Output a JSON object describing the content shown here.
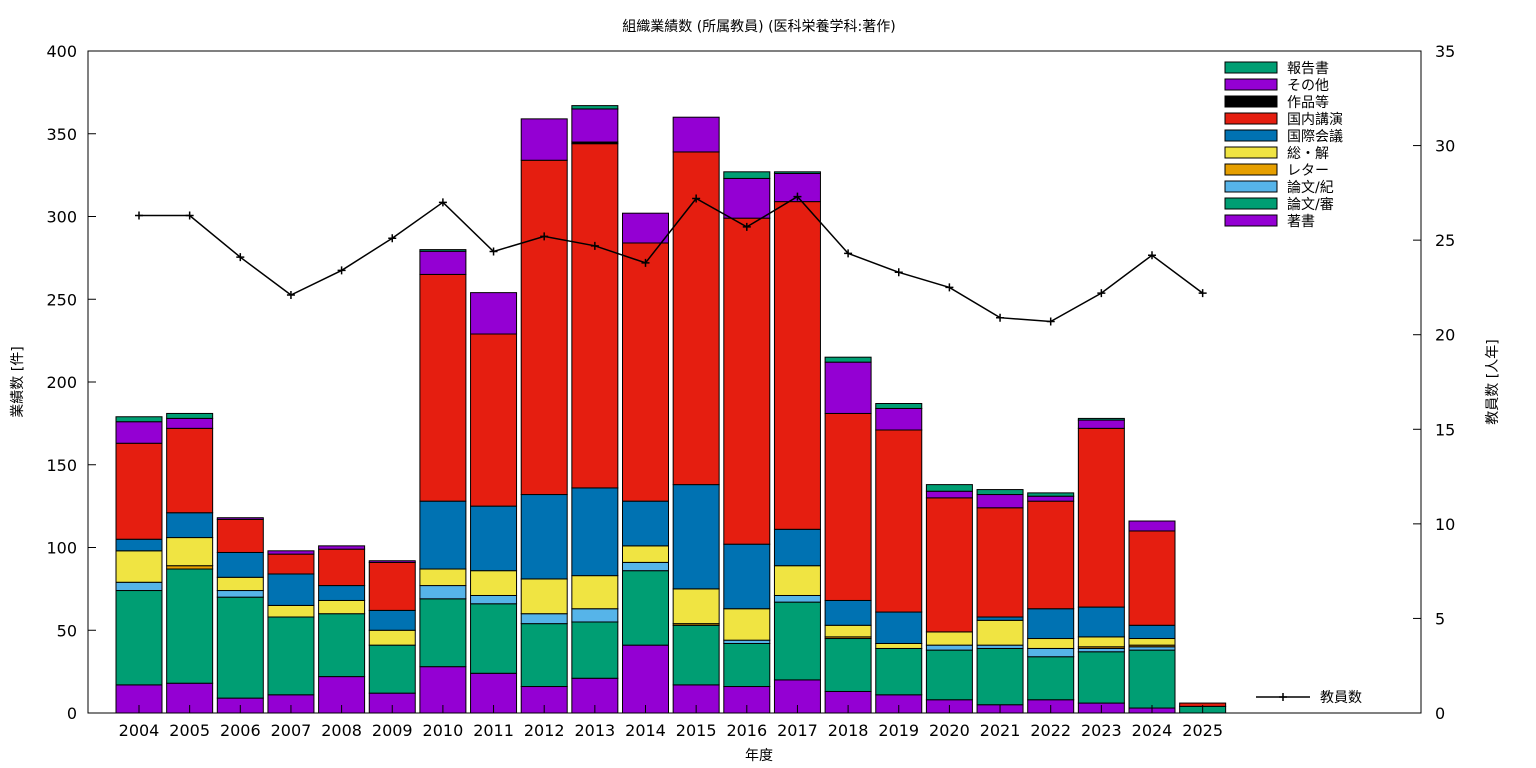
{
  "chart_data": {
    "type": "bar",
    "stacked": true,
    "title": "組織業績数 (所属教員) (医科栄養学科:著作)",
    "xlabel": "年度",
    "ylabel_left": "業績数 [件]",
    "ylabel_right": "教員数 [人年]",
    "ylim_left": [
      0,
      400
    ],
    "ylim_right": [
      0,
      35
    ],
    "yticks_left": [
      "0",
      "50",
      "100",
      "150",
      "200",
      "250",
      "300",
      "350",
      "400"
    ],
    "yticks_right": [
      "0",
      "5",
      "10",
      "15",
      "20",
      "25",
      "30",
      "35"
    ],
    "grid": false,
    "legend_position": "top-right",
    "categories": [
      "2004",
      "2005",
      "2006",
      "2007",
      "2008",
      "2009",
      "2010",
      "2011",
      "2012",
      "2013",
      "2014",
      "2015",
      "2016",
      "2017",
      "2018",
      "2019",
      "2020",
      "2021",
      "2022",
      "2023",
      "2024",
      "2025"
    ],
    "series": [
      {
        "name": "著書",
        "color": "#9400d3",
        "values": [
          17,
          18,
          9,
          11,
          22,
          12,
          28,
          24,
          16,
          21,
          41,
          17,
          16,
          20,
          13,
          11,
          8,
          5,
          8,
          6,
          3,
          0
        ]
      },
      {
        "name": "論文/審",
        "color": "#009e73",
        "values": [
          57,
          69,
          61,
          47,
          38,
          29,
          41,
          42,
          38,
          34,
          45,
          36,
          26,
          47,
          32,
          28,
          30,
          34,
          26,
          31,
          35,
          4
        ]
      },
      {
        "name": "論文/紀",
        "color": "#56b4e9",
        "values": [
          5,
          0,
          4,
          0,
          0,
          0,
          8,
          5,
          6,
          8,
          5,
          0,
          2,
          4,
          0,
          0,
          3,
          2,
          5,
          2,
          2,
          0
        ]
      },
      {
        "name": "レター",
        "color": "#e69f00",
        "values": [
          0,
          2,
          0,
          0,
          0,
          0,
          0,
          0,
          0,
          0,
          0,
          1,
          0,
          0,
          1,
          0,
          0,
          0,
          0,
          1,
          1,
          0
        ]
      },
      {
        "name": "総・解",
        "color": "#f0e442",
        "values": [
          19,
          17,
          8,
          7,
          8,
          9,
          10,
          15,
          21,
          20,
          10,
          21,
          19,
          18,
          7,
          3,
          8,
          15,
          6,
          6,
          4,
          0
        ]
      },
      {
        "name": "国際会議",
        "color": "#0072b2",
        "values": [
          7,
          15,
          15,
          19,
          9,
          12,
          41,
          39,
          51,
          53,
          27,
          63,
          39,
          22,
          15,
          19,
          0,
          2,
          18,
          18,
          8,
          0
        ]
      },
      {
        "name": "国内講演",
        "color": "#e51e10",
        "values": [
          58,
          51,
          20,
          12,
          22,
          29,
          137,
          104,
          202,
          208,
          156,
          201,
          197,
          198,
          113,
          110,
          81,
          66,
          65,
          108,
          57,
          2
        ]
      },
      {
        "name": "作品等",
        "color": "#000000",
        "values": [
          0,
          0,
          0,
          0,
          0,
          0,
          0,
          0,
          0,
          1,
          0,
          0,
          0,
          0,
          0,
          0,
          0,
          0,
          0,
          0,
          0,
          0
        ]
      },
      {
        "name": "その他",
        "color": "#9400d3",
        "values": [
          13,
          6,
          1,
          2,
          2,
          1,
          14,
          25,
          25,
          20,
          18,
          21,
          24,
          17,
          31,
          13,
          4,
          8,
          3,
          5,
          6,
          0
        ]
      },
      {
        "name": "報告書",
        "color": "#009e73",
        "values": [
          3,
          3,
          0,
          0,
          0,
          0,
          1,
          0,
          0,
          2,
          0,
          0,
          4,
          1,
          3,
          3,
          4,
          3,
          2,
          1,
          0,
          0
        ]
      }
    ],
    "line_series": {
      "name": "教員数",
      "color": "#000000",
      "axis": "right",
      "values": [
        26.3,
        26.3,
        24.1,
        22.1,
        23.4,
        25.1,
        27.0,
        24.4,
        25.2,
        24.7,
        23.8,
        27.2,
        25.7,
        27.3,
        24.3,
        23.3,
        22.5,
        20.9,
        20.7,
        22.2,
        24.2,
        22.2
      ]
    }
  }
}
